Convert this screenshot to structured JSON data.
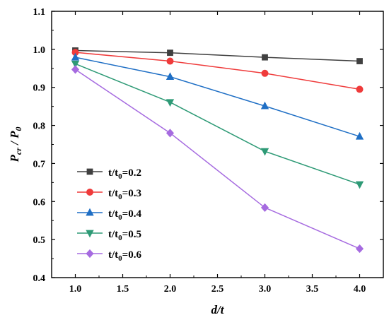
{
  "chart_data": {
    "type": "line",
    "x": [
      1.0,
      2.0,
      3.0,
      4.0
    ],
    "xlim": [
      0.75,
      4.25
    ],
    "ylim": [
      0.4,
      1.1
    ],
    "xticks": [
      "1.0",
      "1.5",
      "2.0",
      "2.5",
      "3.0",
      "3.5",
      "4.0"
    ],
    "yticks": [
      "0.4",
      "0.5",
      "0.6",
      "0.7",
      "0.8",
      "0.9",
      "1.0",
      "1.1"
    ],
    "xlabel": "d/t",
    "ylabel": {
      "main": "P",
      "sub": "cr",
      "sep": " / ",
      "main2": "P",
      "sub2": "0"
    },
    "legend_position": "bottom-left",
    "series": [
      {
        "name": {
          "main": "t/t",
          "sub": "0",
          "rest": "=0.2"
        },
        "color": "#404040",
        "marker": "square",
        "values": [
          0.997,
          0.991,
          0.979,
          0.969
        ]
      },
      {
        "name": {
          "main": "t/t",
          "sub": "0",
          "rest": "=0.3"
        },
        "color": "#ef3b3b",
        "marker": "circle",
        "values": [
          0.992,
          0.969,
          0.937,
          0.895
        ]
      },
      {
        "name": {
          "main": "t/t",
          "sub": "0",
          "rest": "=0.4"
        },
        "color": "#1f6fc5",
        "marker": "triangle-up",
        "values": [
          0.979,
          0.928,
          0.851,
          0.771
        ]
      },
      {
        "name": {
          "main": "t/t",
          "sub": "0",
          "rest": "=0.5"
        },
        "color": "#2e9a76",
        "marker": "triangle-down",
        "values": [
          0.962,
          0.861,
          0.732,
          0.645
        ]
      },
      {
        "name": {
          "main": "t/t",
          "sub": "0",
          "rest": "=0.6"
        },
        "color": "#a66be0",
        "marker": "diamond",
        "values": [
          0.947,
          0.78,
          0.584,
          0.476
        ]
      }
    ]
  }
}
